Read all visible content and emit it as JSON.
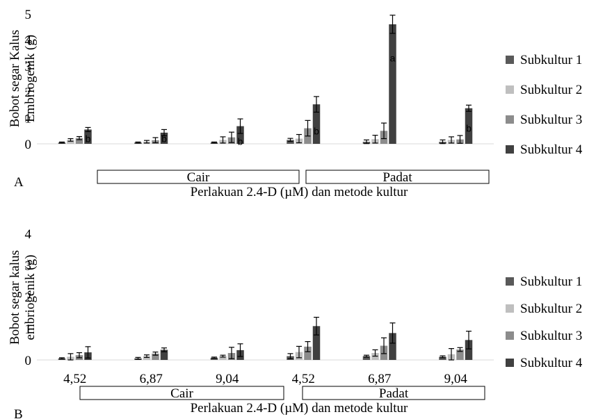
{
  "colors": {
    "Subkultur 1": "#595959",
    "Subkultur 2": "#bfbfbf",
    "Subkultur 3": "#8c8c8c",
    "Subkultur 4": "#404040"
  },
  "chart_data": [
    {
      "type": "bar",
      "panel_letter": "A",
      "ylabel": [
        "Bobot segar  Kalus",
        "Embriogenik (g)"
      ],
      "xlabel": "Perlakuan 2.4-D (µM) dan metode kultur",
      "ylim": [
        0,
        5
      ],
      "yticks": [
        0,
        1,
        2,
        3,
        4,
        5
      ],
      "categories": [
        "",
        "",
        "",
        "",
        "",
        ""
      ],
      "groups": [
        {
          "label": "Cair",
          "from": 0,
          "to": 2
        },
        {
          "label": "Padat",
          "from": 3,
          "to": 5
        }
      ],
      "legend": "right",
      "grid": false,
      "series": [
        {
          "name": "Subkultur 1",
          "values": [
            0.05,
            0.05,
            0.05,
            0.15,
            0.08,
            0.08
          ],
          "errors": [
            0.02,
            0.02,
            0.02,
            0.06,
            0.07,
            0.07
          ]
        },
        {
          "name": "Subkultur 2",
          "values": [
            0.15,
            0.08,
            0.15,
            0.2,
            0.18,
            0.15
          ],
          "errors": [
            0.05,
            0.05,
            0.12,
            0.16,
            0.15,
            0.12
          ]
        },
        {
          "name": "Subkultur 3",
          "values": [
            0.22,
            0.14,
            0.25,
            0.6,
            0.5,
            0.17
          ],
          "errors": [
            0.06,
            0.1,
            0.2,
            0.3,
            0.3,
            0.15
          ]
        },
        {
          "name": "Subkultur 4",
          "values": [
            0.55,
            0.43,
            0.68,
            1.52,
            4.6,
            1.37
          ],
          "errors": [
            0.08,
            0.12,
            0.28,
            0.3,
            0.35,
            0.12
          ]
        }
      ],
      "annotations": [
        {
          "category": 0,
          "series": 3,
          "text": "b",
          "y": 0.2
        },
        {
          "category": 1,
          "series": 3,
          "text": "b",
          "y": 0.2
        },
        {
          "category": 2,
          "series": 3,
          "text": "b",
          "y": 0.1
        },
        {
          "category": 3,
          "series": 3,
          "text": "b",
          "y": 0.5
        },
        {
          "category": 4,
          "series": 3,
          "text": "a",
          "y": 3.3
        },
        {
          "category": 5,
          "series": 3,
          "text": "b",
          "y": 0.6
        }
      ]
    },
    {
      "type": "bar",
      "panel_letter": "B",
      "ylabel": [
        "Bobot segar kalus",
        "embriogenik (g)"
      ],
      "xlabel": "Perlakuan 2.4-D (µM) dan metode kultur",
      "ylim": [
        0,
        4
      ],
      "yticks": [
        0,
        1,
        2,
        3,
        4
      ],
      "categories": [
        "4,52",
        "6,87",
        "9,04",
        "4,52",
        "6,87",
        "9,04"
      ],
      "groups": [
        {
          "label": "Cair",
          "from": 0,
          "to": 2
        },
        {
          "label": "Padat",
          "from": 3,
          "to": 5
        }
      ],
      "legend": "right",
      "grid": false,
      "series": [
        {
          "name": "Subkultur 1",
          "values": [
            0.05,
            0.05,
            0.07,
            0.12,
            0.12,
            0.1
          ],
          "errors": [
            0.02,
            0.03,
            0.02,
            0.08,
            0.03,
            0.03
          ]
        },
        {
          "name": "Subkultur 2",
          "values": [
            0.1,
            0.12,
            0.12,
            0.25,
            0.22,
            0.18
          ],
          "errors": [
            0.1,
            0.04,
            0.03,
            0.18,
            0.1,
            0.18
          ]
        },
        {
          "name": "Subkultur 3",
          "values": [
            0.15,
            0.2,
            0.22,
            0.42,
            0.45,
            0.33
          ],
          "errors": [
            0.08,
            0.05,
            0.18,
            0.16,
            0.25,
            0.06
          ]
        },
        {
          "name": "Subkultur 4",
          "values": [
            0.24,
            0.32,
            0.31,
            1.07,
            0.85,
            0.63
          ],
          "errors": [
            0.18,
            0.06,
            0.2,
            0.28,
            0.32,
            0.28
          ]
        }
      ],
      "annotations": []
    }
  ]
}
